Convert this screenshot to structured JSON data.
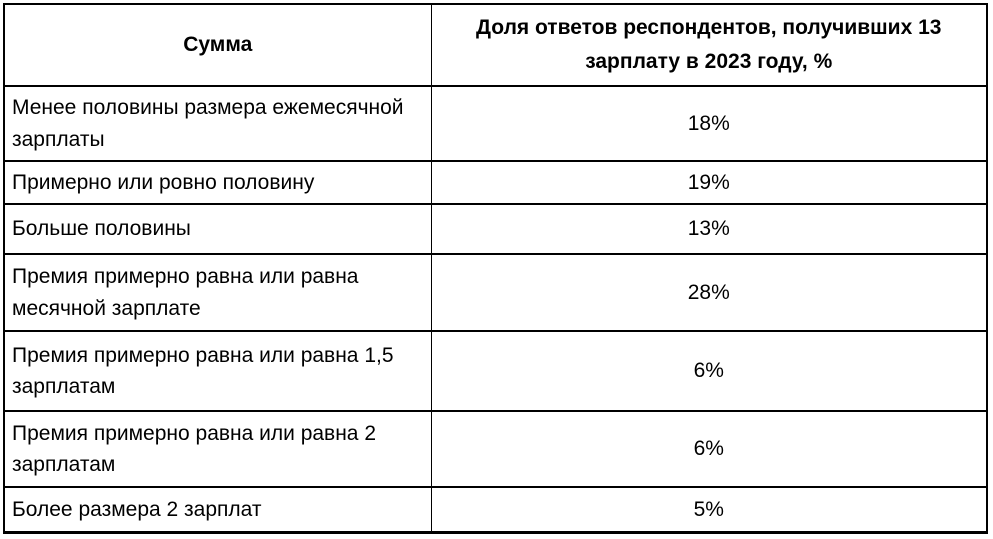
{
  "table": {
    "headers": {
      "col1": "Сумма",
      "col2": "Доля ответов респондентов, получивших 13 зарплату в 2023 году, %"
    },
    "rows": [
      {
        "label": "Менее половины размера ежемесячной зарплаты",
        "value": "18%"
      },
      {
        "label": "Примерно или ровно половину",
        "value": "19%"
      },
      {
        "label": "Больше половины",
        "value": "13%"
      },
      {
        "label": "Премия примерно равна или равна месячной зарплате",
        "value": "28%"
      },
      {
        "label": "Премия примерно равна или равна 1,5 зарплатам",
        "value": "6%"
      },
      {
        "label": "Премия примерно равна или равна 2 зарплатам",
        "value": "6%"
      },
      {
        "label": "Более размера 2 зарплат",
        "value": "5%"
      }
    ]
  },
  "colors": {
    "border": "#000000",
    "text": "#000000",
    "background": "#ffffff"
  },
  "chart_data": {
    "type": "table",
    "title": "Доля ответов респондентов, получивших 13 зарплату в 2023 году",
    "columns": [
      "Сумма",
      "Доля ответов респондентов, получивших 13 зарплату в 2023 году, %"
    ],
    "categories": [
      "Менее половины размера ежемесячной зарплаты",
      "Примерно или ровно половину",
      "Больше половины",
      "Премия примерно равна или равна месячной зарплате",
      "Премия примерно равна или равна 1,5 зарплатам",
      "Премия примерно равна или равна 2 зарплатам",
      "Более размера 2 зарплат"
    ],
    "values": [
      18,
      19,
      13,
      28,
      6,
      6,
      5
    ],
    "value_labels": [
      "18%",
      "19%",
      "13%",
      "28%",
      "6%",
      "6%",
      "5%"
    ],
    "unit": "%"
  }
}
